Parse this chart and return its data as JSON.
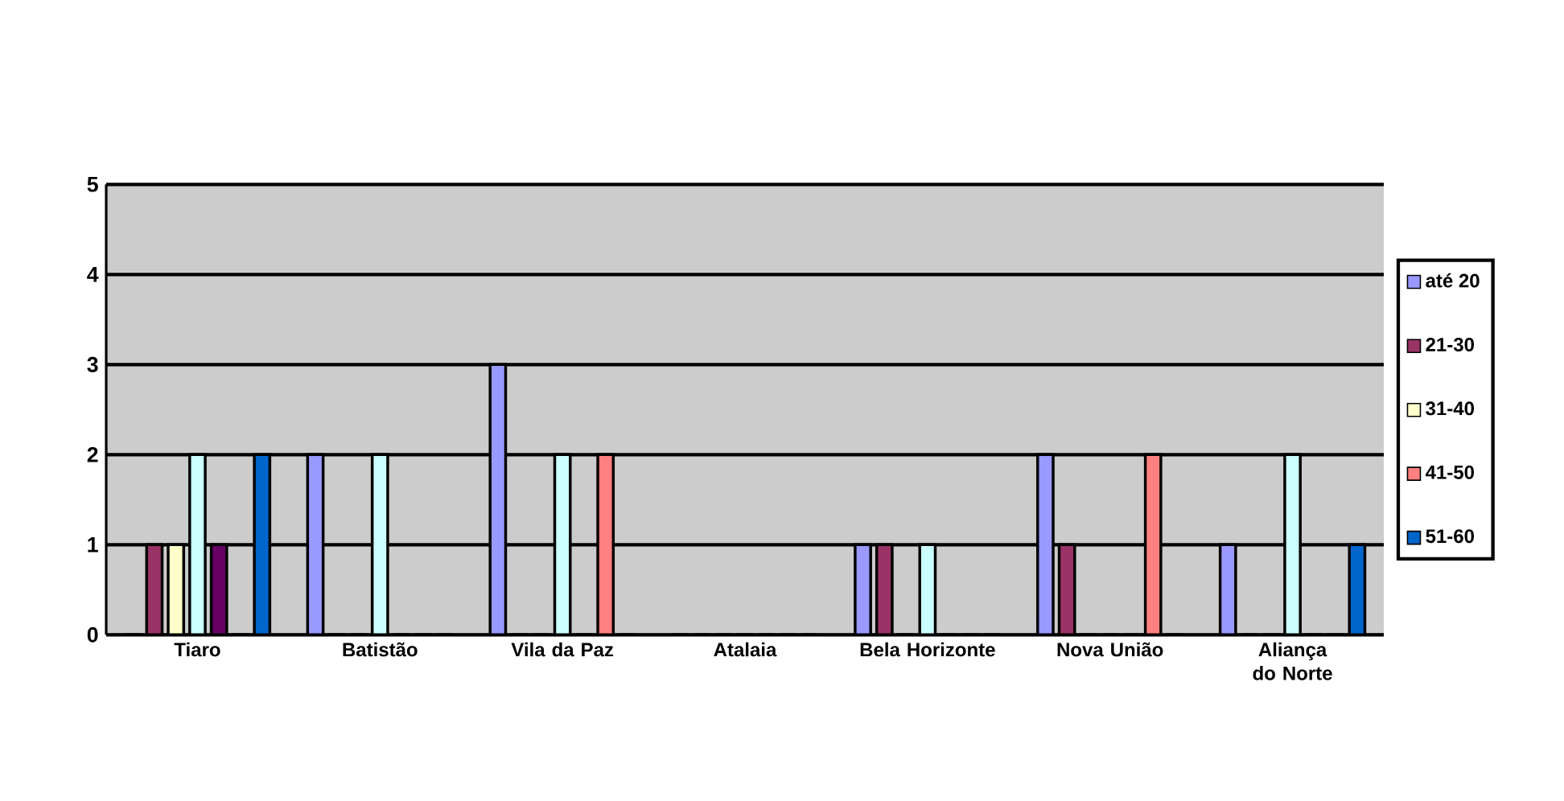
{
  "chart_data": {
    "type": "bar",
    "categories": [
      "Tiaro",
      "Batistão",
      "Vila da Paz",
      "Atalaia",
      "Bela Horizonte",
      "Nova União",
      "Aliança do Norte"
    ],
    "series": [
      {
        "name": "até 20",
        "color": "#9999ff",
        "values": [
          0,
          2,
          3,
          0,
          1,
          2,
          1
        ]
      },
      {
        "name": "21-30",
        "color": "#993366",
        "values": [
          1,
          0,
          0,
          0,
          1,
          1,
          0
        ]
      },
      {
        "name": "31-40",
        "color": "#ffffcc",
        "values": [
          1,
          0,
          0,
          0,
          0,
          0,
          0
        ]
      },
      {
        "color": "#ccffff",
        "values": [
          2,
          2,
          2,
          0,
          1,
          0,
          2
        ]
      },
      {
        "color": "#660066",
        "values": [
          1,
          0,
          0,
          0,
          0,
          0,
          0
        ]
      },
      {
        "name": "41-50",
        "color": "#ff8080",
        "values": [
          0,
          0,
          2,
          0,
          0,
          2,
          0
        ]
      },
      {
        "name": "51-60",
        "color": "#0066cc",
        "values": [
          2,
          0,
          0,
          0,
          0,
          0,
          1
        ]
      }
    ],
    "ylim": [
      0,
      5
    ],
    "yticks": [
      0,
      1,
      2,
      3,
      4,
      5
    ],
    "grid": "y",
    "legend": "right"
  }
}
